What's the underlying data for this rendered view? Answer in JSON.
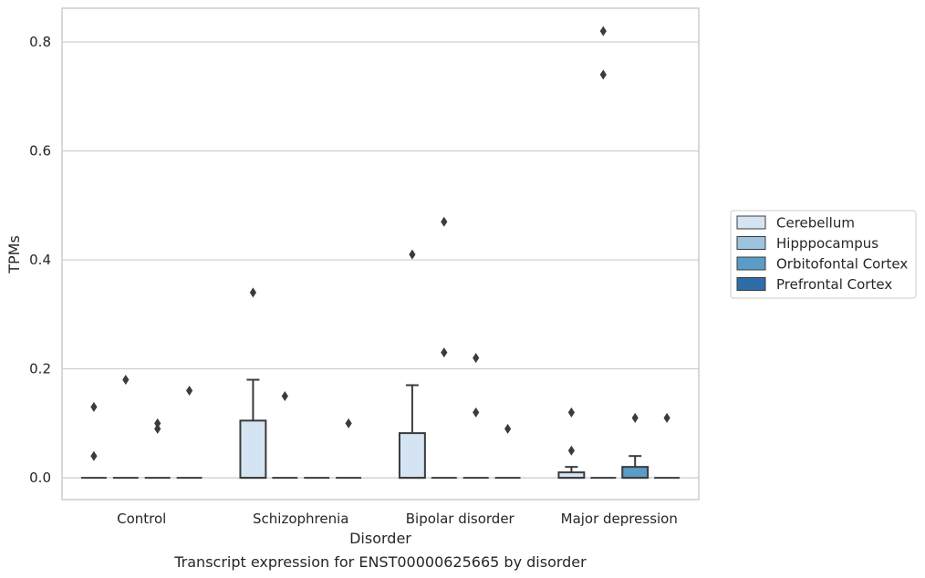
{
  "caption": "Transcript expression for ENST00000625665 by disorder",
  "chart_data": {
    "type": "box",
    "xlabel": "Disorder",
    "ylabel": "TPMs",
    "ylim": [
      -0.04,
      0.862
    ],
    "yticks": [
      0.0,
      0.2,
      0.4,
      0.6,
      0.8
    ],
    "ytick_labels": [
      "0.0",
      "0.2",
      "0.4",
      "0.6",
      "0.8"
    ],
    "grid": "horizontal",
    "legend_position": "right",
    "categories": [
      "Control",
      "Schizophrenia",
      "Bipolar disorder",
      "Major depression"
    ],
    "series": [
      {
        "name": "Cerebellum",
        "color": "#d5e4f2",
        "boxes": [
          {
            "q1": 0,
            "median": 0,
            "q3": 0,
            "whisker_low": 0,
            "whisker_high": 0,
            "outliers": [
              0.04,
              0.13
            ]
          },
          {
            "q1": 0,
            "median": 0,
            "q3": 0.105,
            "whisker_low": 0,
            "whisker_high": 0.18,
            "outliers": [
              0.34
            ]
          },
          {
            "q1": 0,
            "median": 0,
            "q3": 0.082,
            "whisker_low": 0,
            "whisker_high": 0.17,
            "outliers": [
              0.41
            ]
          },
          {
            "q1": 0,
            "median": 0,
            "q3": 0.01,
            "whisker_low": 0,
            "whisker_high": 0.02,
            "outliers": [
              0.05,
              0.12
            ]
          }
        ]
      },
      {
        "name": "Hipppocampus",
        "color": "#9dc3de",
        "boxes": [
          {
            "q1": 0,
            "median": 0,
            "q3": 0,
            "whisker_low": 0,
            "whisker_high": 0,
            "outliers": [
              0.18
            ]
          },
          {
            "q1": 0,
            "median": 0,
            "q3": 0,
            "whisker_low": 0,
            "whisker_high": 0,
            "outliers": [
              0.15
            ]
          },
          {
            "q1": 0,
            "median": 0,
            "q3": 0,
            "whisker_low": 0,
            "whisker_high": 0,
            "outliers": [
              0.23,
              0.47
            ]
          },
          {
            "q1": 0,
            "median": 0,
            "q3": 0,
            "whisker_low": 0,
            "whisker_high": 0,
            "outliers": [
              0.74,
              0.82
            ]
          }
        ]
      },
      {
        "name": "Orbitofontal Cortex",
        "color": "#5b9cc8",
        "boxes": [
          {
            "q1": 0,
            "median": 0,
            "q3": 0,
            "whisker_low": 0,
            "whisker_high": 0,
            "outliers": [
              0.09,
              0.1
            ]
          },
          {
            "q1": 0,
            "median": 0,
            "q3": 0,
            "whisker_low": 0,
            "whisker_high": 0,
            "outliers": []
          },
          {
            "q1": 0,
            "median": 0,
            "q3": 0,
            "whisker_low": 0,
            "whisker_high": 0,
            "outliers": [
              0.12,
              0.22
            ]
          },
          {
            "q1": 0,
            "median": 0,
            "q3": 0.02,
            "whisker_low": 0,
            "whisker_high": 0.04,
            "outliers": [
              0.11
            ]
          }
        ]
      },
      {
        "name": "Prefrontal Cortex",
        "color": "#2d6ea9",
        "boxes": [
          {
            "q1": 0,
            "median": 0,
            "q3": 0,
            "whisker_low": 0,
            "whisker_high": 0,
            "outliers": [
              0.16
            ]
          },
          {
            "q1": 0,
            "median": 0,
            "q3": 0,
            "whisker_low": 0,
            "whisker_high": 0,
            "outliers": [
              0.1
            ]
          },
          {
            "q1": 0,
            "median": 0,
            "q3": 0,
            "whisker_low": 0,
            "whisker_high": 0,
            "outliers": [
              0.09
            ]
          },
          {
            "q1": 0,
            "median": 0,
            "q3": 0,
            "whisker_low": 0,
            "whisker_high": 0,
            "outliers": [
              0.11
            ]
          }
        ]
      }
    ]
  }
}
